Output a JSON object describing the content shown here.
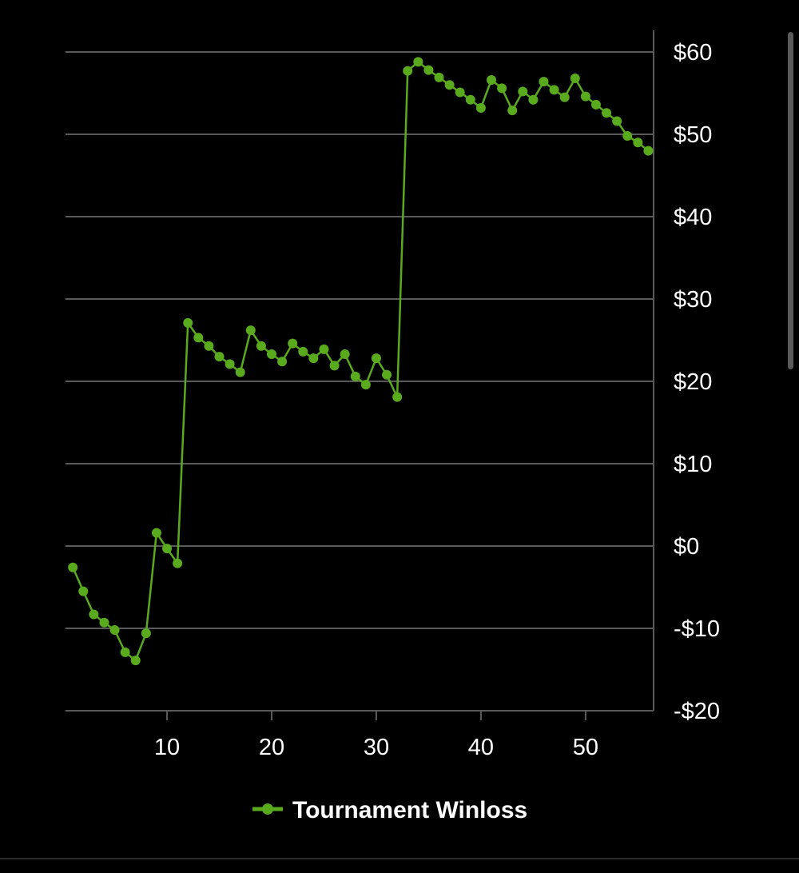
{
  "colors": {
    "background": "#000000",
    "series": "#5aaa1e",
    "grid": "#5a5a5a",
    "text": "#ffffff"
  },
  "chart_data": {
    "type": "line",
    "title": "",
    "xlabel": "",
    "ylabel": "",
    "xlim": [
      0.3,
      56.5
    ],
    "ylim": [
      -20,
      60
    ],
    "x_ticks": [
      10,
      20,
      30,
      40,
      50
    ],
    "y_ticks": [
      -20,
      -10,
      0,
      10,
      20,
      30,
      40,
      50,
      60
    ],
    "x_tick_labels": [
      "10",
      "20",
      "30",
      "40",
      "50"
    ],
    "y_tick_labels": [
      "-$20",
      "-$10",
      "$0",
      "$10",
      "$20",
      "$30",
      "$40",
      "$50",
      "$60"
    ],
    "y_axis_position": "right",
    "grid": true,
    "legend_position": "bottom-center",
    "series": [
      {
        "name": "Tournament Winloss",
        "color": "#5aaa1e",
        "x": [
          1,
          2,
          3,
          4,
          5,
          6,
          7,
          8,
          9,
          10,
          11,
          12,
          13,
          14,
          15,
          16,
          17,
          18,
          19,
          20,
          21,
          22,
          23,
          24,
          25,
          26,
          27,
          28,
          29,
          30,
          31,
          32,
          33,
          34,
          35,
          36,
          37,
          38,
          39,
          40,
          41,
          42,
          43,
          44,
          45,
          46,
          47,
          48,
          49,
          50,
          51,
          52,
          53,
          54,
          55,
          56
        ],
        "values": [
          -2.6,
          -5.5,
          -8.3,
          -9.3,
          -10.2,
          -12.9,
          -13.9,
          -10.6,
          1.6,
          -0.3,
          -2.1,
          27.1,
          25.3,
          24.3,
          23.0,
          22.1,
          21.1,
          26.2,
          24.3,
          23.3,
          22.4,
          24.6,
          23.6,
          22.8,
          23.9,
          21.9,
          23.3,
          20.6,
          19.6,
          22.8,
          20.8,
          18.1,
          57.7,
          58.8,
          57.8,
          56.9,
          56.0,
          55.1,
          54.2,
          53.2,
          56.6,
          55.6,
          52.9,
          55.2,
          54.2,
          56.4,
          55.4,
          54.5,
          56.8,
          54.6,
          53.6,
          52.6,
          51.6,
          49.8,
          49.0,
          48.0
        ]
      }
    ]
  }
}
